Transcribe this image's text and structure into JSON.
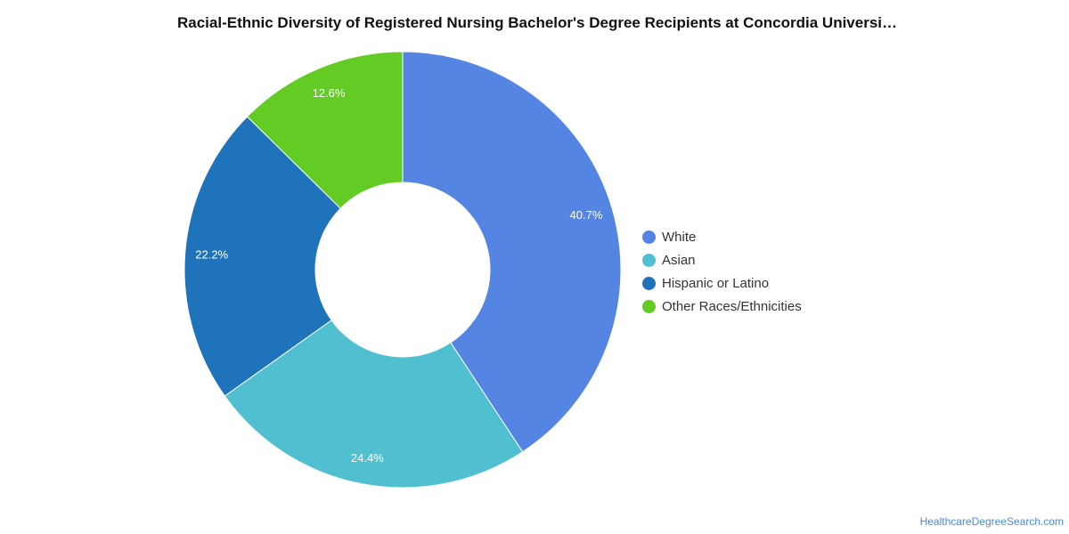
{
  "chart_data": {
    "type": "pie",
    "title": "Racial-Ethnic Diversity of Registered Nursing Bachelor's Degree Recipients at Concordia Universi…",
    "donut": true,
    "legend_position": "right",
    "slices": [
      {
        "label": "White",
        "value": 40.7,
        "display": "40.7%",
        "color": "#5585e2"
      },
      {
        "label": "Asian",
        "value": 24.4,
        "display": "24.4%",
        "color": "#50c0d0"
      },
      {
        "label": "Hispanic or Latino",
        "value": 22.2,
        "display": "22.2%",
        "color": "#1f73ba"
      },
      {
        "label": "Other Races/Ethnicities",
        "value": 12.6,
        "display": "12.6%",
        "color": "#62cc24"
      }
    ]
  },
  "footer": {
    "source": "HealthcareDegreeSearch.com"
  }
}
